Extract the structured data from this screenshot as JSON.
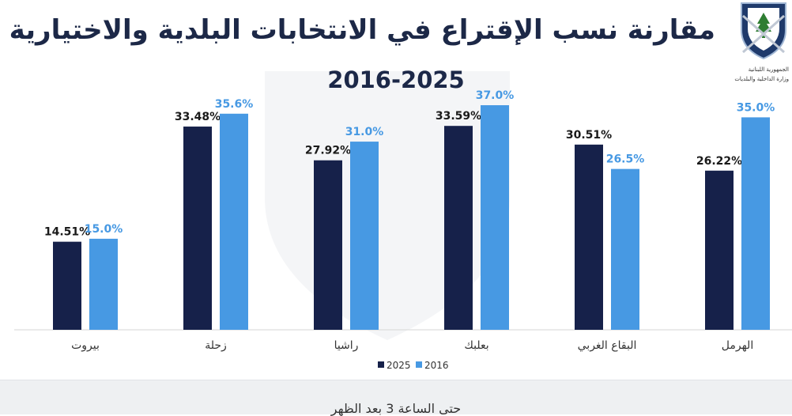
{
  "title": "مقارنة نسب الإقتراع في الانتخابات البلدية والاختيارية",
  "subtitle": "2016-2025",
  "logo": {
    "line1": "الجمهورية اللبنانية",
    "line2": "وزارة الداخلية والبلديات"
  },
  "footer": "حتى الساعة 3 بعد الظهر",
  "colors": {
    "s2025": "#16214a",
    "s2016": "#4799e3",
    "title": "#1c2847"
  },
  "chart_data": {
    "type": "bar",
    "categories": [
      "بيروت",
      "زحلة",
      "راشيا",
      "بعلبك",
      "البقاع الغربي",
      "الهرمل"
    ],
    "series": [
      {
        "name": "2025",
        "values": [
          14.51,
          33.48,
          27.92,
          33.59,
          30.51,
          26.22
        ],
        "labels": [
          "14.51%",
          "33.48%",
          "27.92%",
          "33.59%",
          "30.51%",
          "26.22%"
        ]
      },
      {
        "name": "2016",
        "values": [
          15.0,
          35.6,
          31.0,
          37.0,
          26.5,
          35.0
        ],
        "labels": [
          "15.0%",
          "35.6%",
          "31.0%",
          "37.0%",
          "26.5%",
          "35.0%"
        ]
      }
    ],
    "ylim": [
      0,
      40
    ],
    "grid": false,
    "legend_position": "bottom-center"
  }
}
